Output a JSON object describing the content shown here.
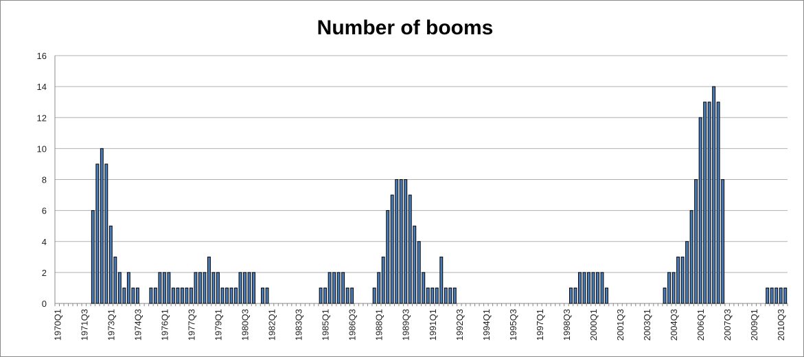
{
  "chart_data": {
    "type": "bar",
    "title": "Number of booms",
    "categories": [
      "1970Q1",
      null,
      null,
      null,
      null,
      null,
      "1971Q3",
      null,
      null,
      null,
      null,
      null,
      "1973Q1",
      null,
      null,
      null,
      null,
      null,
      "1974Q3",
      null,
      null,
      null,
      null,
      null,
      "1976Q1",
      null,
      null,
      null,
      null,
      null,
      "1977Q3",
      null,
      null,
      null,
      null,
      null,
      "1979Q1",
      null,
      null,
      null,
      null,
      null,
      "1980Q3",
      null,
      null,
      null,
      null,
      null,
      "1982Q1",
      null,
      null,
      null,
      null,
      null,
      "1983Q3",
      null,
      null,
      null,
      null,
      null,
      "1985Q1",
      null,
      null,
      null,
      null,
      null,
      "1986Q3",
      null,
      null,
      null,
      null,
      null,
      "1988Q1",
      null,
      null,
      null,
      null,
      null,
      "1989Q3",
      null,
      null,
      null,
      null,
      null,
      "1991Q1",
      null,
      null,
      null,
      null,
      null,
      "1992Q3",
      null,
      null,
      null,
      null,
      null,
      "1994Q1",
      null,
      null,
      null,
      null,
      null,
      "1995Q3",
      null,
      null,
      null,
      null,
      null,
      "1997Q1",
      null,
      null,
      null,
      null,
      null,
      "1998Q3",
      null,
      null,
      null,
      null,
      null,
      "2000Q1",
      null,
      null,
      null,
      null,
      null,
      "2001Q3",
      null,
      null,
      null,
      null,
      null,
      "2003Q1",
      null,
      null,
      null,
      null,
      null,
      "2004Q3",
      null,
      null,
      null,
      null,
      null,
      "2006Q1",
      null,
      null,
      null,
      null,
      null,
      "2007Q3",
      null,
      null,
      null,
      null,
      null,
      "2009Q1",
      null,
      null,
      null,
      null,
      null,
      "2010Q3",
      null
    ],
    "values": [
      0,
      0,
      0,
      0,
      0,
      0,
      0,
      0,
      6,
      9,
      10,
      9,
      5,
      3,
      2,
      1,
      2,
      1,
      1,
      0,
      0,
      1,
      1,
      2,
      2,
      2,
      1,
      1,
      1,
      1,
      1,
      2,
      2,
      2,
      3,
      2,
      2,
      1,
      1,
      1,
      1,
      2,
      2,
      2,
      2,
      0,
      1,
      1,
      0,
      0,
      0,
      0,
      0,
      0,
      0,
      0,
      0,
      0,
      0,
      1,
      1,
      2,
      2,
      2,
      2,
      1,
      1,
      0,
      0,
      0,
      0,
      1,
      2,
      3,
      6,
      7,
      8,
      8,
      8,
      7,
      5,
      4,
      2,
      1,
      1,
      1,
      3,
      1,
      1,
      1,
      0,
      0,
      0,
      0,
      0,
      0,
      0,
      0,
      0,
      0,
      0,
      0,
      0,
      0,
      0,
      0,
      0,
      0,
      0,
      0,
      0,
      0,
      0,
      0,
      0,
      1,
      1,
      2,
      2,
      2,
      2,
      2,
      2,
      1,
      0,
      0,
      0,
      0,
      0,
      0,
      0,
      0,
      0,
      0,
      0,
      0,
      1,
      2,
      2,
      3,
      3,
      4,
      6,
      8,
      12,
      13,
      13,
      14,
      13,
      8,
      0,
      0,
      0,
      0,
      0,
      0,
      0,
      0,
      0,
      1,
      1,
      1,
      1,
      1
    ],
    "color": "#4a7ebb",
    "ylim": [
      0,
      16
    ],
    "yticks": [
      0,
      2,
      4,
      6,
      8,
      10,
      12,
      14,
      16
    ],
    "grid": true
  }
}
